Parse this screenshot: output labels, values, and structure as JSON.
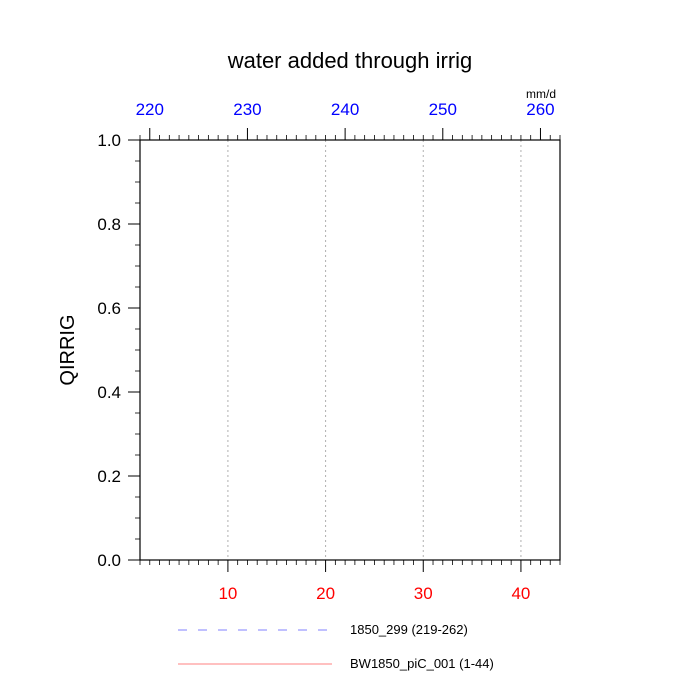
{
  "chart_data": {
    "type": "line",
    "title": "water added through irrig",
    "ylabel": "QIRRIG",
    "units": "mm/d",
    "ylim": [
      0,
      1
    ],
    "y_ticks": [
      "0.0",
      "0.2",
      "0.4",
      "0.6",
      "0.8",
      "1.0"
    ],
    "bottom_axis": {
      "xlim": [
        1,
        44
      ],
      "ticks": [
        10,
        20,
        30,
        40
      ],
      "color": "#ff0000"
    },
    "top_axis": {
      "xlim": [
        219,
        262
      ],
      "ticks": [
        220,
        230,
        240,
        250,
        260
      ],
      "color": "#0000ff"
    },
    "series": [
      {
        "name": "1850_299 (219-262)",
        "color": "#8080ff",
        "dash": "dashed",
        "axis": "top",
        "values": []
      },
      {
        "name": "BW1850_piC_001 (1-44)",
        "color": "#ff8080",
        "dash": "solid",
        "axis": "bottom",
        "values": []
      }
    ],
    "grid": "vertical-dotted-at-bottom-ticks",
    "legend_position": "bottom"
  }
}
